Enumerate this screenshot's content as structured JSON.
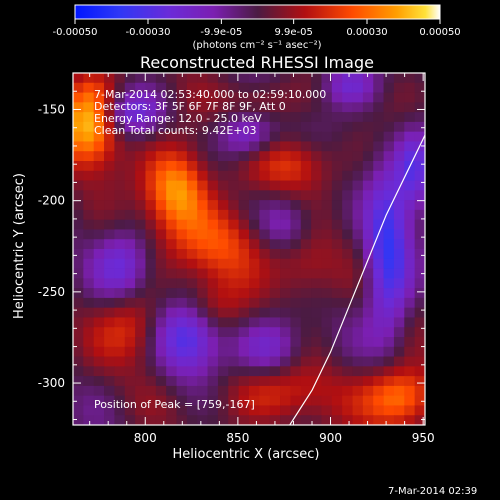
{
  "chart_data": {
    "type": "heatmap",
    "title": "Reconstructed RHESSI Image",
    "xlabel": "Heliocentric X (arcsec)",
    "ylabel": "Heliocentric Y (arcsec)",
    "xlim": [
      761,
      951
    ],
    "ylim": [
      -323,
      -130
    ],
    "x_ticks": [
      800,
      850,
      900,
      950
    ],
    "y_ticks": [
      -150,
      -200,
      -250,
      -300
    ],
    "colorbar": {
      "min": -0.0005,
      "max": 0.0005,
      "ticks": [
        -0.0005,
        -0.0003,
        -9.9e-05,
        9.9e-05,
        0.0003,
        0.0005
      ],
      "tick_labels": [
        "-0.00050",
        "-0.00030",
        "-9.9e-05",
        "9.9e-05",
        "0.00030",
        "0.00050"
      ],
      "unit_label": "(photons cm⁻² s⁻¹ asec⁻²)"
    },
    "annotations": [
      "7-Mar-2014 02:53:40.000 to 02:59:10.000",
      "Detectors: 3F 5F 6F 7F 8F 9F, Att 0",
      "Energy Range: 12.0 - 25.0 keV",
      "Clean    Total counts: 9.42E+03",
      "Position of Peak = [759,-167]"
    ],
    "footer": "7-Mar-2014 02:39",
    "limb_line": [
      [
        952,
        -162
      ],
      [
        941,
        -185
      ],
      [
        930,
        -208
      ],
      [
        920,
        -233
      ],
      [
        910,
        -258
      ],
      [
        900,
        -283
      ],
      [
        890,
        -304
      ],
      [
        878,
        -323
      ]
    ]
  }
}
